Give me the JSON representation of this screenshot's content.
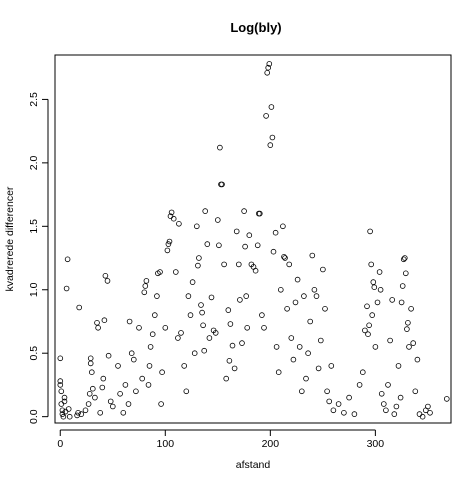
{
  "chart_data": {
    "type": "scatter",
    "title": "Log(bly)",
    "xlabel": "afstand",
    "ylabel": "kvadrerede differencer",
    "xlim": [
      -5,
      372
    ],
    "ylim": [
      -0.05,
      2.85
    ],
    "xticks": [
      0,
      100,
      200,
      300
    ],
    "yticks": [
      0.0,
      0.5,
      1.0,
      1.5,
      2.0,
      2.5
    ],
    "grid": false,
    "marker": "open-circle",
    "series": [
      {
        "points": [
          [
            0,
            0.46
          ],
          [
            0,
            0.28
          ],
          [
            0,
            0.25
          ],
          [
            1,
            0.2
          ],
          [
            1,
            0.1
          ],
          [
            2,
            0.05
          ],
          [
            2,
            0.02
          ],
          [
            3,
            0.0
          ],
          [
            4,
            0.12
          ],
          [
            4,
            0.15
          ],
          [
            5,
            0.04
          ],
          [
            6,
            1.01
          ],
          [
            7,
            1.24
          ],
          [
            8,
            0.06
          ],
          [
            9,
            0.0
          ],
          [
            16,
            0.01
          ],
          [
            17,
            0.03
          ],
          [
            18,
            0.86
          ],
          [
            20,
            0.02
          ],
          [
            24,
            0.05
          ],
          [
            27,
            0.1
          ],
          [
            28,
            0.18
          ],
          [
            29,
            0.42
          ],
          [
            29,
            0.46
          ],
          [
            30,
            0.35
          ],
          [
            31,
            0.22
          ],
          [
            33,
            0.15
          ],
          [
            35,
            0.74
          ],
          [
            36,
            0.7
          ],
          [
            38,
            0.03
          ],
          [
            40,
            0.23
          ],
          [
            41,
            0.3
          ],
          [
            42,
            0.76
          ],
          [
            43,
            1.11
          ],
          [
            45,
            1.07
          ],
          [
            46,
            0.48
          ],
          [
            48,
            0.12
          ],
          [
            50,
            0.08
          ],
          [
            55,
            0.4
          ],
          [
            57,
            0.18
          ],
          [
            60,
            0.03
          ],
          [
            62,
            0.25
          ],
          [
            65,
            0.1
          ],
          [
            66,
            0.75
          ],
          [
            68,
            0.5
          ],
          [
            70,
            0.45
          ],
          [
            72,
            0.2
          ],
          [
            75,
            0.7
          ],
          [
            78,
            0.3
          ],
          [
            80,
            0.98
          ],
          [
            81,
            1.03
          ],
          [
            82,
            1.07
          ],
          [
            84,
            0.25
          ],
          [
            85,
            0.4
          ],
          [
            86,
            0.55
          ],
          [
            88,
            0.65
          ],
          [
            90,
            0.8
          ],
          [
            92,
            0.95
          ],
          [
            93,
            1.13
          ],
          [
            95,
            1.14
          ],
          [
            96,
            0.1
          ],
          [
            97,
            0.35
          ],
          [
            100,
            0.7
          ],
          [
            102,
            1.31
          ],
          [
            103,
            1.36
          ],
          [
            104,
            1.38
          ],
          [
            105,
            1.58
          ],
          [
            106,
            1.61
          ],
          [
            108,
            1.56
          ],
          [
            110,
            1.14
          ],
          [
            112,
            0.62
          ],
          [
            113,
            1.52
          ],
          [
            115,
            0.66
          ],
          [
            118,
            0.4
          ],
          [
            120,
            0.2
          ],
          [
            122,
            0.95
          ],
          [
            124,
            0.8
          ],
          [
            126,
            1.06
          ],
          [
            128,
            0.5
          ],
          [
            130,
            1.5
          ],
          [
            131,
            1.19
          ],
          [
            132,
            1.25
          ],
          [
            134,
            0.88
          ],
          [
            135,
            0.82
          ],
          [
            136,
            0.72
          ],
          [
            137,
            0.52
          ],
          [
            138,
            1.62
          ],
          [
            140,
            1.36
          ],
          [
            142,
            0.62
          ],
          [
            144,
            0.94
          ],
          [
            146,
            0.68
          ],
          [
            148,
            0.66
          ],
          [
            150,
            1.55
          ],
          [
            151,
            1.35
          ],
          [
            152,
            2.12
          ],
          [
            153,
            1.83
          ],
          [
            154,
            1.83
          ],
          [
            156,
            1.2
          ],
          [
            158,
            0.3
          ],
          [
            160,
            0.84
          ],
          [
            161,
            0.44
          ],
          [
            162,
            0.73
          ],
          [
            164,
            0.56
          ],
          [
            166,
            0.38
          ],
          [
            168,
            1.46
          ],
          [
            170,
            1.2
          ],
          [
            171,
            0.92
          ],
          [
            173,
            0.58
          ],
          [
            175,
            1.62
          ],
          [
            176,
            1.34
          ],
          [
            177,
            0.95
          ],
          [
            178,
            0.7
          ],
          [
            180,
            1.43
          ],
          [
            182,
            1.2
          ],
          [
            184,
            1.18
          ],
          [
            186,
            1.15
          ],
          [
            188,
            1.35
          ],
          [
            189,
            1.6
          ],
          [
            190,
            1.6
          ],
          [
            192,
            0.8
          ],
          [
            194,
            0.7
          ],
          [
            196,
            2.37
          ],
          [
            197,
            2.71
          ],
          [
            198,
            2.75
          ],
          [
            199,
            2.78
          ],
          [
            200,
            2.14
          ],
          [
            201,
            2.44
          ],
          [
            202,
            2.2
          ],
          [
            203,
            1.3
          ],
          [
            205,
            1.45
          ],
          [
            206,
            0.55
          ],
          [
            208,
            0.35
          ],
          [
            210,
            1.0
          ],
          [
            212,
            1.5
          ],
          [
            213,
            1.26
          ],
          [
            214,
            1.25
          ],
          [
            216,
            0.85
          ],
          [
            218,
            1.2
          ],
          [
            220,
            0.62
          ],
          [
            222,
            0.45
          ],
          [
            224,
            0.9
          ],
          [
            226,
            1.08
          ],
          [
            228,
            0.55
          ],
          [
            230,
            0.2
          ],
          [
            232,
            0.95
          ],
          [
            234,
            0.3
          ],
          [
            236,
            0.5
          ],
          [
            238,
            0.75
          ],
          [
            240,
            1.27
          ],
          [
            242,
            1.0
          ],
          [
            244,
            0.95
          ],
          [
            246,
            0.38
          ],
          [
            248,
            0.6
          ],
          [
            250,
            1.16
          ],
          [
            252,
            0.85
          ],
          [
            254,
            0.2
          ],
          [
            256,
            0.12
          ],
          [
            258,
            0.4
          ],
          [
            260,
            0.05
          ],
          [
            265,
            0.1
          ],
          [
            270,
            0.03
          ],
          [
            275,
            0.15
          ],
          [
            280,
            0.02
          ],
          [
            285,
            0.25
          ],
          [
            288,
            0.35
          ],
          [
            290,
            0.68
          ],
          [
            292,
            0.87
          ],
          [
            293,
            0.65
          ],
          [
            294,
            0.72
          ],
          [
            295,
            1.46
          ],
          [
            296,
            1.2
          ],
          [
            297,
            0.8
          ],
          [
            298,
            1.06
          ],
          [
            299,
            1.02
          ],
          [
            300,
            0.55
          ],
          [
            302,
            0.9
          ],
          [
            304,
            1.14
          ],
          [
            305,
            1.0
          ],
          [
            306,
            0.18
          ],
          [
            308,
            0.1
          ],
          [
            310,
            0.05
          ],
          [
            312,
            0.25
          ],
          [
            314,
            0.6
          ],
          [
            316,
            0.92
          ],
          [
            318,
            0.02
          ],
          [
            320,
            0.08
          ],
          [
            322,
            0.4
          ],
          [
            324,
            0.15
          ],
          [
            325,
            0.9
          ],
          [
            326,
            1.03
          ],
          [
            327,
            1.24
          ],
          [
            328,
            1.25
          ],
          [
            329,
            1.13
          ],
          [
            330,
            0.69
          ],
          [
            331,
            0.74
          ],
          [
            332,
            0.55
          ],
          [
            334,
            0.85
          ],
          [
            336,
            0.58
          ],
          [
            338,
            0.2
          ],
          [
            340,
            0.45
          ],
          [
            342,
            0.02
          ],
          [
            345,
            0.0
          ],
          [
            348,
            0.05
          ],
          [
            350,
            0.08
          ],
          [
            352,
            0.03
          ],
          [
            368,
            0.14
          ]
        ]
      }
    ]
  }
}
